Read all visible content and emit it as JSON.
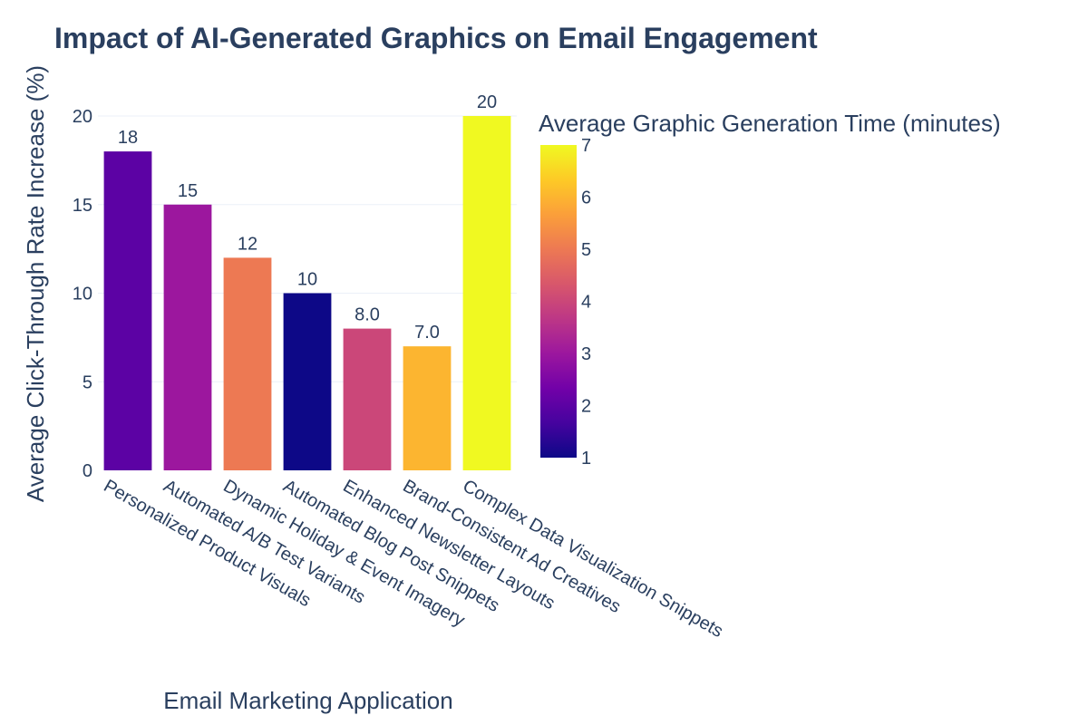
{
  "chart_data": {
    "type": "bar",
    "title": "Impact of AI-Generated Graphics on Email Engagement",
    "xlabel": "Email Marketing Application",
    "ylabel": "Average Click-Through Rate Increase (%)",
    "ylim": [
      0,
      20
    ],
    "yticks": [
      0,
      5,
      10,
      15,
      20
    ],
    "categories": [
      "Personalized Product Visuals",
      "Automated A/B Test Variants",
      "Dynamic Holiday & Event Imagery",
      "Automated Blog Post Snippets",
      "Enhanced Newsletter Layouts",
      "Brand-Consistent Ad Creatives",
      "Complex Data Visualization Snippets"
    ],
    "values": [
      18,
      15,
      12,
      10,
      8,
      7,
      20
    ],
    "value_labels": [
      "18",
      "15",
      "12",
      "10",
      "8.0",
      "7.0",
      "20"
    ],
    "color_values": [
      2,
      3,
      5,
      1,
      4,
      6,
      7
    ],
    "colorbar": {
      "title": "Average Graphic Generation Time (minutes)",
      "range": [
        1,
        7
      ],
      "ticks": [
        1,
        2,
        3,
        4,
        5,
        6,
        7
      ],
      "colorscale": [
        "#0d0887",
        "#46039f",
        "#7201a8",
        "#9c179e",
        "#bd3786",
        "#d8576b",
        "#ed7953",
        "#fb9f3a",
        "#fdca26",
        "#f0f921"
      ]
    },
    "grid": true
  }
}
